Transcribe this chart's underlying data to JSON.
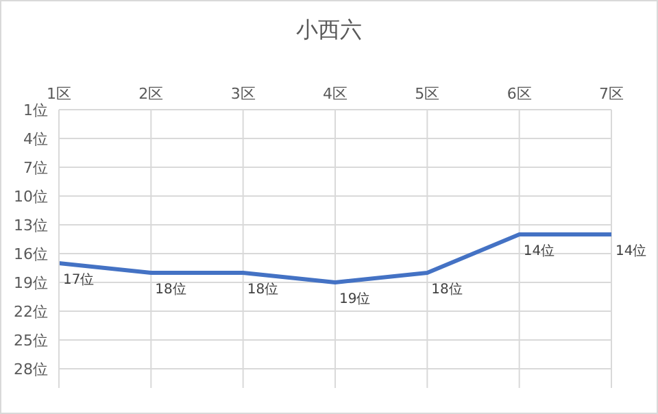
{
  "chart_data": {
    "type": "line",
    "title": "小西六",
    "categories": [
      "1区",
      "2区",
      "3区",
      "4区",
      "5区",
      "6区",
      "7区"
    ],
    "series": [
      {
        "color": "#4472c4",
        "values": [
          17,
          18,
          18,
          19,
          18,
          14,
          14
        ],
        "value_labels": [
          "17位",
          "18位",
          "18位",
          "19位",
          "18位",
          "14位",
          "14位"
        ]
      }
    ],
    "ylim": [
      30,
      1
    ],
    "yticks": [
      {
        "value": 1,
        "label": "1位"
      },
      {
        "value": 4,
        "label": "4位"
      },
      {
        "value": 7,
        "label": "7位"
      },
      {
        "value": 10,
        "label": "10位"
      },
      {
        "value": 13,
        "label": "13位"
      },
      {
        "value": 16,
        "label": "16位"
      },
      {
        "value": 19,
        "label": "19位"
      },
      {
        "value": 22,
        "label": "22位"
      },
      {
        "value": 25,
        "label": "25位"
      },
      {
        "value": 28,
        "label": "28位"
      }
    ],
    "grid": true
  }
}
